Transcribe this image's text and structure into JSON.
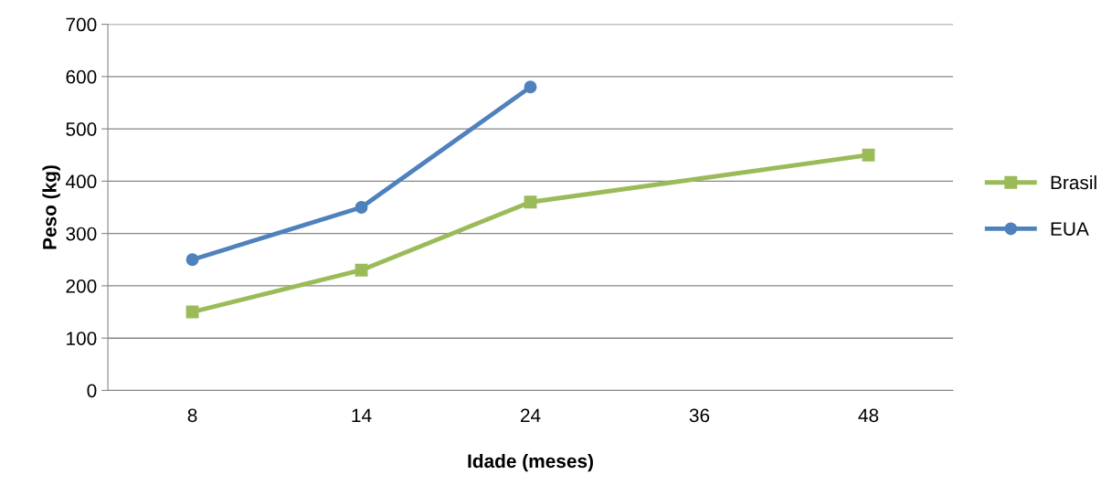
{
  "chart_data": {
    "type": "line",
    "xlabel": "Idade (meses)",
    "ylabel": "Peso (kg)",
    "categories": [
      "8",
      "14",
      "24",
      "36",
      "48"
    ],
    "series": [
      {
        "name": "Brasil",
        "color": "#9bbb59",
        "marker": "square",
        "values": [
          150,
          230,
          360,
          null,
          450
        ]
      },
      {
        "name": "EUA",
        "color": "#4f81bd",
        "marker": "circle",
        "values": [
          250,
          350,
          580,
          null,
          null
        ]
      }
    ],
    "ylim": [
      0,
      700
    ],
    "yticks": [
      0,
      100,
      200,
      300,
      400,
      500,
      600,
      700
    ],
    "grid": "y",
    "legend": "right",
    "line_style": "solid"
  }
}
